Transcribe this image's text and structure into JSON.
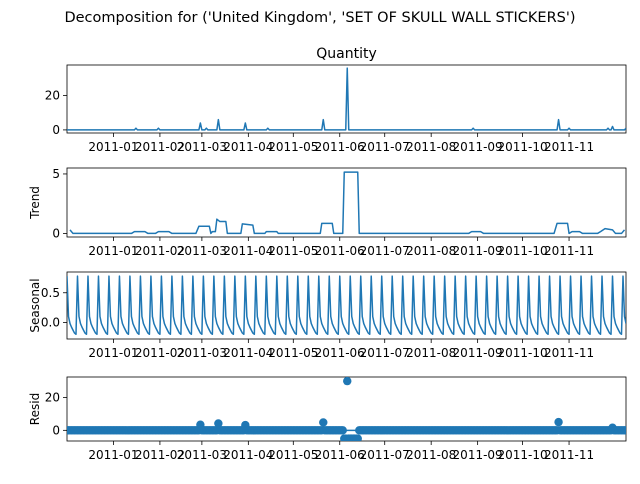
{
  "figure": {
    "suptitle": "Decomposition for ('United Kingdom', 'SET OF SKULL WALL STICKERS')"
  },
  "colors": {
    "series": "#1f77b4",
    "axis": "#000000",
    "background": "#ffffff"
  },
  "chart_data": [
    {
      "type": "line",
      "title": "Quantity",
      "ylabel": "",
      "xlim": [
        "2010-12-01",
        "2011-12-09"
      ],
      "ylim": [
        -1.8,
        37.8
      ],
      "yticks": [
        0,
        20
      ],
      "xtick_labels": [
        "2011-01",
        "2011-02",
        "2011-03",
        "2011-04",
        "2011-05",
        "2011-06",
        "2011-07",
        "2011-08",
        "2011-09",
        "2011-10",
        "2011-11"
      ],
      "baseline": 0,
      "spikes": [
        {
          "x": "2011-01-16",
          "y": 1
        },
        {
          "x": "2011-01-31",
          "y": 1
        },
        {
          "x": "2011-02-28",
          "y": 4
        },
        {
          "x": "2011-03-04",
          "y": 1
        },
        {
          "x": "2011-03-12",
          "y": 6
        },
        {
          "x": "2011-03-30",
          "y": 4
        },
        {
          "x": "2011-04-14",
          "y": 1
        },
        {
          "x": "2011-05-21",
          "y": 6
        },
        {
          "x": "2011-06-06",
          "y": 36
        },
        {
          "x": "2011-08-29",
          "y": 1
        },
        {
          "x": "2011-10-25",
          "y": 6
        },
        {
          "x": "2011-11-01",
          "y": 1
        },
        {
          "x": "2011-11-27",
          "y": 1
        },
        {
          "x": "2011-11-30",
          "y": 2
        },
        {
          "x": "2011-12-09",
          "y": 1
        }
      ]
    },
    {
      "type": "line",
      "title": "",
      "ylabel": "Trend",
      "xlim": [
        "2010-12-01",
        "2011-12-09"
      ],
      "ylim": [
        -0.3,
        5.5
      ],
      "yticks": [
        0,
        5
      ],
      "xtick_labels": [
        "2011-01",
        "2011-02",
        "2011-03",
        "2011-04",
        "2011-05",
        "2011-06",
        "2011-07",
        "2011-08",
        "2011-09",
        "2011-10",
        "2011-11"
      ],
      "points": [
        {
          "x": "2010-12-03",
          "y": 0.3
        },
        {
          "x": "2010-12-05",
          "y": 0.0
        },
        {
          "x": "2011-01-13",
          "y": 0.0
        },
        {
          "x": "2011-01-15",
          "y": 0.15
        },
        {
          "x": "2011-01-22",
          "y": 0.15
        },
        {
          "x": "2011-01-24",
          "y": 0.0
        },
        {
          "x": "2011-01-29",
          "y": 0.0
        },
        {
          "x": "2011-01-31",
          "y": 0.15
        },
        {
          "x": "2011-02-07",
          "y": 0.15
        },
        {
          "x": "2011-02-09",
          "y": 0.0
        },
        {
          "x": "2011-02-25",
          "y": 0.0
        },
        {
          "x": "2011-02-27",
          "y": 0.6
        },
        {
          "x": "2011-03-06",
          "y": 0.6
        },
        {
          "x": "2011-03-07",
          "y": 0.0
        },
        {
          "x": "2011-03-08",
          "y": 0.15
        },
        {
          "x": "2011-03-10",
          "y": 0.15
        },
        {
          "x": "2011-03-11",
          "y": 1.2
        },
        {
          "x": "2011-03-13",
          "y": 1.0
        },
        {
          "x": "2011-03-17",
          "y": 1.0
        },
        {
          "x": "2011-03-18",
          "y": 0.0
        },
        {
          "x": "2011-03-27",
          "y": 0.0
        },
        {
          "x": "2011-03-28",
          "y": 0.8
        },
        {
          "x": "2011-04-04",
          "y": 0.7
        },
        {
          "x": "2011-04-05",
          "y": 0.0
        },
        {
          "x": "2011-04-12",
          "y": 0.0
        },
        {
          "x": "2011-04-13",
          "y": 0.15
        },
        {
          "x": "2011-04-20",
          "y": 0.15
        },
        {
          "x": "2011-04-21",
          "y": 0.0
        },
        {
          "x": "2011-05-19",
          "y": 0.0
        },
        {
          "x": "2011-05-20",
          "y": 0.85
        },
        {
          "x": "2011-05-27",
          "y": 0.85
        },
        {
          "x": "2011-05-28",
          "y": 0.0
        },
        {
          "x": "2011-06-03",
          "y": 0.0
        },
        {
          "x": "2011-06-04",
          "y": 5.15
        },
        {
          "x": "2011-06-13",
          "y": 5.15
        },
        {
          "x": "2011-06-14",
          "y": 0.0
        },
        {
          "x": "2011-08-26",
          "y": 0.0
        },
        {
          "x": "2011-08-28",
          "y": 0.15
        },
        {
          "x": "2011-09-03",
          "y": 0.15
        },
        {
          "x": "2011-09-05",
          "y": 0.0
        },
        {
          "x": "2011-10-22",
          "y": 0.0
        },
        {
          "x": "2011-10-24",
          "y": 0.85
        },
        {
          "x": "2011-10-31",
          "y": 0.85
        },
        {
          "x": "2011-11-01",
          "y": 0.0
        },
        {
          "x": "2011-11-03",
          "y": 0.15
        },
        {
          "x": "2011-11-08",
          "y": 0.15
        },
        {
          "x": "2011-11-10",
          "y": 0.0
        },
        {
          "x": "2011-11-20",
          "y": 0.0
        },
        {
          "x": "2011-11-22",
          "y": 0.15
        },
        {
          "x": "2011-11-25",
          "y": 0.4
        },
        {
          "x": "2011-11-30",
          "y": 0.3
        },
        {
          "x": "2011-12-02",
          "y": 0.0
        },
        {
          "x": "2011-12-06",
          "y": 0.0
        },
        {
          "x": "2011-12-08",
          "y": 0.3
        }
      ]
    },
    {
      "type": "line",
      "title": "",
      "ylabel": "Seasonal",
      "xlim": [
        "2010-12-01",
        "2011-12-09"
      ],
      "ylim": [
        -0.28,
        0.85
      ],
      "yticks": [
        0.0,
        0.5
      ],
      "ytick_labels": [
        "0.0",
        "0.5"
      ],
      "xtick_labels": [
        "2011-01",
        "2011-02",
        "2011-03",
        "2011-04",
        "2011-05",
        "2011-06",
        "2011-07",
        "2011-08",
        "2011-09",
        "2011-10",
        "2011-11"
      ],
      "period_days": 7,
      "first_peak": "2010-12-01",
      "weekly_pattern": [
        0.78,
        0.1,
        -0.02,
        -0.08,
        -0.13,
        -0.18,
        -0.2
      ]
    },
    {
      "type": "scatter",
      "title": "",
      "ylabel": "Resid",
      "xlim": [
        "2010-12-01",
        "2011-12-09"
      ],
      "ylim": [
        -6.5,
        32.5
      ],
      "yticks": [
        0,
        20
      ],
      "xtick_labels": [
        "2011-01",
        "2011-02",
        "2011-03",
        "2011-04",
        "2011-05",
        "2011-06",
        "2011-07",
        "2011-08",
        "2011-09",
        "2011-10",
        "2011-11"
      ],
      "baseline": 0,
      "outliers": [
        {
          "x": "2011-02-28",
          "y": 3.4
        },
        {
          "x": "2011-03-12",
          "y": 4.2
        },
        {
          "x": "2011-03-30",
          "y": 3.2
        },
        {
          "x": "2011-05-21",
          "y": 4.8
        },
        {
          "x": "2011-06-04",
          "y": -5.0
        },
        {
          "x": "2011-06-05",
          "y": -5.0
        },
        {
          "x": "2011-06-06",
          "y": 30.0
        },
        {
          "x": "2011-06-07",
          "y": -5.0
        },
        {
          "x": "2011-06-08",
          "y": -5.0
        },
        {
          "x": "2011-06-09",
          "y": -5.0
        },
        {
          "x": "2011-06-10",
          "y": -5.0
        },
        {
          "x": "2011-06-11",
          "y": -5.0
        },
        {
          "x": "2011-06-12",
          "y": -5.0
        },
        {
          "x": "2011-06-13",
          "y": -5.0
        },
        {
          "x": "2011-10-25",
          "y": 5.0
        },
        {
          "x": "2011-11-30",
          "y": 1.6
        }
      ]
    }
  ]
}
